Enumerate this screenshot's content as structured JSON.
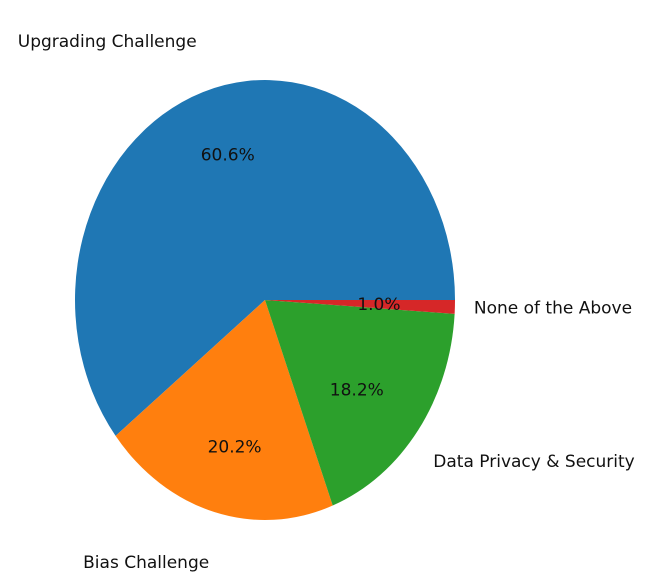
{
  "chart_data": {
    "type": "pie",
    "categories": [
      "Upgrading Challenge",
      "Bias Challenge",
      "Data Privacy & Security",
      "None of the Above"
    ],
    "values": [
      60.6,
      20.2,
      18.2,
      1.0
    ],
    "value_labels": [
      "60.6%",
      "20.2%",
      "18.2%",
      "1.0%"
    ],
    "colors": [
      "#1f77b4",
      "#ff7f0e",
      "#2ca02c",
      "#d62728"
    ]
  }
}
